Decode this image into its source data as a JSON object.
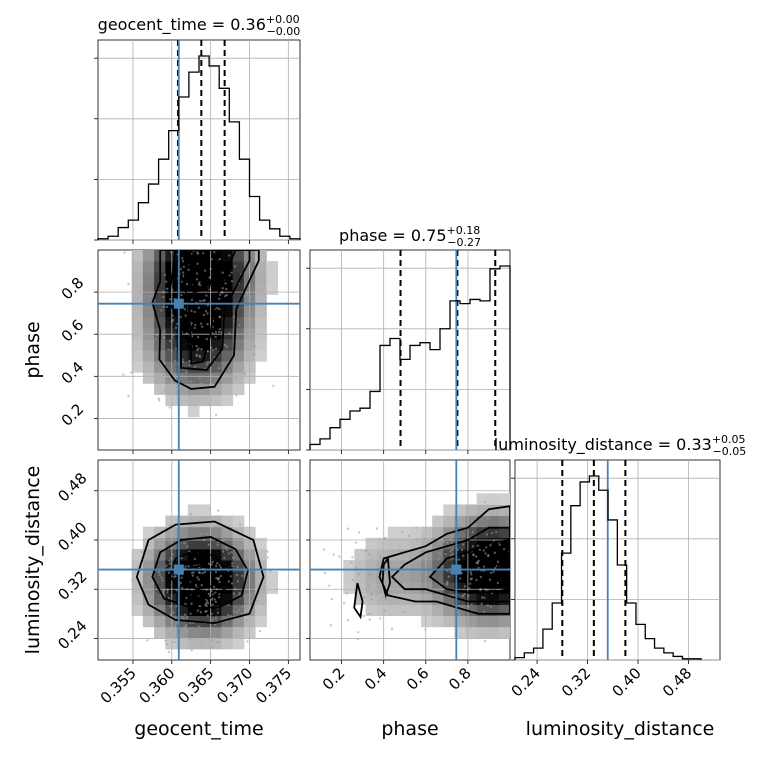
{
  "chart_data": {
    "type": "corner",
    "parameters": [
      "geocent_time",
      "phase",
      "luminosity_distance"
    ],
    "axis_labels": {
      "geocent_time": "geocent_time",
      "phase": "phase",
      "luminosity_distance": "luminosity_distance"
    },
    "ranges": {
      "geocent_time": [
        0.3505,
        0.3765
      ],
      "phase": [
        0.05,
        1.0
      ],
      "luminosity_distance": [
        0.205,
        0.53
      ]
    },
    "ticks": {
      "geocent_time": [
        "0.355",
        "0.360",
        "0.365",
        "0.370",
        "0.375"
      ],
      "phase": [
        "0.2",
        "0.4",
        "0.6",
        "0.8"
      ],
      "luminosity_distance": [
        "0.24",
        "0.32",
        "0.40",
        "0.48"
      ]
    },
    "truths": {
      "geocent_time": 0.3609,
      "phase": 0.745,
      "luminosity_distance": 0.352
    },
    "titles": {
      "geocent_time": {
        "text": "geocent_time = 0.36",
        "plus": "+0.00",
        "minus": "−0.00"
      },
      "phase": {
        "text": "phase = 0.75",
        "plus": "+0.18",
        "minus": "−0.27"
      },
      "luminosity_distance": {
        "text": "luminosity_distance = 0.33",
        "plus": "+0.05",
        "minus": "−0.05"
      }
    },
    "quantiles": {
      "geocent_time": [
        0.3608,
        0.3638,
        0.3668
      ],
      "phase": [
        0.48,
        0.75,
        0.93
      ],
      "luminosity_distance": [
        0.28,
        0.33,
        0.38
      ]
    },
    "histograms": {
      "geocent_time": {
        "edges": [
          0.3505,
          0.3518,
          0.3531,
          0.3544,
          0.3557,
          0.357,
          0.3583,
          0.3596,
          0.3609,
          0.3622,
          0.3635,
          0.3648,
          0.3661,
          0.3674,
          0.3687,
          0.37,
          0.3713,
          0.3726,
          0.3739,
          0.3752,
          0.3765
        ],
        "counts": [
          1,
          3,
          10,
          16,
          30,
          45,
          65,
          88,
          115,
          135,
          148,
          140,
          122,
          95,
          65,
          35,
          16,
          9,
          3,
          1
        ]
      },
      "phase": {
        "edges": [
          0.05,
          0.0975,
          0.145,
          0.1925,
          0.24,
          0.2875,
          0.335,
          0.3825,
          0.43,
          0.4775,
          0.525,
          0.5725,
          0.62,
          0.6675,
          0.715,
          0.7625,
          0.81,
          0.8575,
          0.905,
          0.9525,
          1.0
        ],
        "counts": [
          4,
          8,
          16,
          22,
          28,
          30,
          42,
          75,
          80,
          65,
          75,
          77,
          72,
          87,
          107,
          105,
          108,
          107,
          130,
          132
        ]
      },
      "luminosity_distance": {
        "edges": [
          0.205,
          0.21975,
          0.2345,
          0.24925,
          0.264,
          0.27875,
          0.2935,
          0.30825,
          0.323,
          0.33775,
          0.3525,
          0.36725,
          0.382,
          0.39675,
          0.4115,
          0.42625,
          0.441,
          0.45575,
          0.4705,
          0.48525,
          0.5
        ],
        "counts": [
          2,
          6,
          10,
          26,
          48,
          90,
          130,
          150,
          155,
          143,
          118,
          80,
          48,
          30,
          18,
          10,
          6,
          3,
          1,
          1
        ]
      }
    },
    "contours": {
      "geocent_time_vs_phase": [
        [
          [
            0.3604,
            0.38
          ],
          [
            0.3625,
            0.34
          ],
          [
            0.3655,
            0.35
          ],
          [
            0.368,
            0.5
          ],
          [
            0.3683,
            0.72
          ],
          [
            0.3712,
            0.95
          ],
          [
            0.3712,
            1.0
          ],
          [
            0.3585,
            1.0
          ],
          [
            0.3585,
            0.85
          ],
          [
            0.3575,
            0.75
          ],
          [
            0.3585,
            0.62
          ],
          [
            0.3584,
            0.48
          ],
          [
            0.3604,
            0.38
          ]
        ],
        [
          [
            0.3612,
            0.44
          ],
          [
            0.3645,
            0.43
          ],
          [
            0.3665,
            0.53
          ],
          [
            0.3668,
            0.72
          ],
          [
            0.37,
            0.95
          ],
          [
            0.37,
            1.0
          ],
          [
            0.3605,
            1.0
          ],
          [
            0.36,
            0.86
          ],
          [
            0.3595,
            0.76
          ],
          [
            0.3612,
            0.66
          ],
          [
            0.3612,
            0.55
          ],
          [
            0.3612,
            0.44
          ]
        ],
        [
          [
            0.3625,
            0.46
          ],
          [
            0.364,
            0.47
          ],
          [
            0.365,
            0.6
          ],
          [
            0.3655,
            0.75
          ],
          [
            0.3682,
            1.0
          ],
          [
            0.3625,
            1.0
          ],
          [
            0.3615,
            0.85
          ],
          [
            0.3622,
            0.72
          ],
          [
            0.3625,
            0.55
          ],
          [
            0.3625,
            0.46
          ]
        ],
        [
          [
            0.3628,
            0.8
          ],
          [
            0.3648,
            0.82
          ],
          [
            0.3662,
            1.0
          ],
          [
            0.363,
            1.0
          ],
          [
            0.3628,
            0.8
          ]
        ]
      ],
      "geocent_time_vs_luminosity_distance": [
        [
          [
            0.3555,
            0.34
          ],
          [
            0.357,
            0.295
          ],
          [
            0.3605,
            0.27
          ],
          [
            0.3655,
            0.265
          ],
          [
            0.37,
            0.28
          ],
          [
            0.3718,
            0.34
          ],
          [
            0.3705,
            0.4
          ],
          [
            0.3655,
            0.43
          ],
          [
            0.3605,
            0.425
          ],
          [
            0.357,
            0.4
          ],
          [
            0.3555,
            0.34
          ]
        ],
        [
          [
            0.3575,
            0.34
          ],
          [
            0.359,
            0.305
          ],
          [
            0.3625,
            0.29
          ],
          [
            0.366,
            0.29
          ],
          [
            0.369,
            0.31
          ],
          [
            0.3698,
            0.35
          ],
          [
            0.3682,
            0.385
          ],
          [
            0.365,
            0.405
          ],
          [
            0.3612,
            0.4
          ],
          [
            0.3585,
            0.38
          ],
          [
            0.3575,
            0.34
          ]
        ],
        [
          [
            0.3598,
            0.34
          ],
          [
            0.3615,
            0.31
          ],
          [
            0.3648,
            0.305
          ],
          [
            0.3668,
            0.32
          ],
          [
            0.3672,
            0.345
          ],
          [
            0.3655,
            0.375
          ],
          [
            0.3628,
            0.382
          ],
          [
            0.3605,
            0.37
          ],
          [
            0.3598,
            0.34
          ]
        ],
        [
          [
            0.3618,
            0.335
          ],
          [
            0.3632,
            0.32
          ],
          [
            0.3652,
            0.325
          ],
          [
            0.3655,
            0.345
          ],
          [
            0.3643,
            0.36
          ],
          [
            0.3625,
            0.355
          ],
          [
            0.3618,
            0.335
          ]
        ]
      ],
      "phase_vs_luminosity_distance": [
        [
          [
            0.38,
            0.34
          ],
          [
            0.42,
            0.31
          ],
          [
            0.55,
            0.3
          ],
          [
            0.65,
            0.3
          ],
          [
            0.75,
            0.29
          ],
          [
            0.85,
            0.28
          ],
          [
            1.0,
            0.28
          ],
          [
            1.0,
            0.455
          ],
          [
            0.9,
            0.45
          ],
          [
            0.8,
            0.42
          ],
          [
            0.7,
            0.41
          ],
          [
            0.6,
            0.39
          ],
          [
            0.5,
            0.38
          ],
          [
            0.4,
            0.37
          ],
          [
            0.38,
            0.34
          ]
        ],
        [
          [
            0.44,
            0.34
          ],
          [
            0.5,
            0.32
          ],
          [
            0.6,
            0.32
          ],
          [
            0.7,
            0.31
          ],
          [
            0.8,
            0.3
          ],
          [
            0.9,
            0.3
          ],
          [
            1.0,
            0.3
          ],
          [
            1.0,
            0.42
          ],
          [
            0.9,
            0.42
          ],
          [
            0.8,
            0.4
          ],
          [
            0.7,
            0.39
          ],
          [
            0.6,
            0.38
          ],
          [
            0.5,
            0.36
          ],
          [
            0.44,
            0.34
          ]
        ],
        [
          [
            0.62,
            0.34
          ],
          [
            0.7,
            0.32
          ],
          [
            0.8,
            0.315
          ],
          [
            0.9,
            0.315
          ],
          [
            1.0,
            0.32
          ],
          [
            1.0,
            0.4
          ],
          [
            0.9,
            0.395
          ],
          [
            0.8,
            0.38
          ],
          [
            0.7,
            0.37
          ],
          [
            0.62,
            0.34
          ]
        ],
        [
          [
            0.92,
            0.34
          ],
          [
            0.97,
            0.33
          ],
          [
            1.0,
            0.335
          ],
          [
            1.0,
            0.375
          ],
          [
            0.96,
            0.37
          ],
          [
            0.92,
            0.34
          ]
        ],
        [
          [
            0.395,
            0.33
          ],
          [
            0.41,
            0.31
          ],
          [
            0.43,
            0.33
          ],
          [
            0.42,
            0.37
          ],
          [
            0.4,
            0.36
          ],
          [
            0.395,
            0.33
          ]
        ],
        [
          [
            0.26,
            0.29
          ],
          [
            0.29,
            0.275
          ],
          [
            0.3,
            0.3
          ],
          [
            0.275,
            0.33
          ],
          [
            0.26,
            0.29
          ]
        ]
      ]
    },
    "density_peaks": {
      "geocent_time_vs_phase": [
        [
          0.3638,
          0.95,
          1.0
        ],
        [
          0.3635,
          0.8,
          0.7
        ],
        [
          0.3632,
          0.65,
          0.45
        ],
        [
          0.3632,
          0.5,
          0.55
        ]
      ],
      "geocent_time_vs_luminosity_distance": [
        [
          0.3635,
          0.34,
          1.0
        ],
        [
          0.3642,
          0.32,
          0.6
        ]
      ],
      "phase_vs_luminosity_distance": [
        [
          0.96,
          0.355,
          1.0
        ],
        [
          0.83,
          0.35,
          0.7
        ],
        [
          0.42,
          0.34,
          0.3
        ]
      ]
    }
  }
}
